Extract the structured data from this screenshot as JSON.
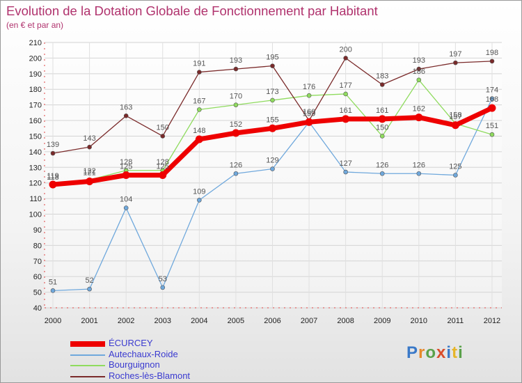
{
  "chart_data": {
    "type": "line",
    "title": "Evolution de la Dotation Globale de Fonctionnement par Habitant",
    "subtitle": "(en € et par an)",
    "x": [
      "2000",
      "2001",
      "2002",
      "2003",
      "2004",
      "2005",
      "2006",
      "2007",
      "2008",
      "2009",
      "2010",
      "2011",
      "2012"
    ],
    "ylim": [
      40,
      210
    ],
    "yticks": [
      40,
      50,
      60,
      70,
      80,
      90,
      100,
      110,
      120,
      130,
      140,
      150,
      160,
      170,
      180,
      190,
      200,
      210
    ],
    "series": [
      {
        "name": "ÉCURCEY",
        "color": "#ee0000",
        "values": [
          119,
          121,
          125,
          125,
          148,
          152,
          155,
          159,
          161,
          161,
          162,
          157,
          168
        ]
      },
      {
        "name": "Autechaux-Roide",
        "color": "#6fa8dc",
        "values": [
          51,
          52,
          104,
          53,
          109,
          126,
          129,
          159,
          127,
          126,
          126,
          125,
          174
        ]
      },
      {
        "name": "Bourguignon",
        "color": "#8fdb5e",
        "values": [
          118,
          122,
          128,
          128,
          167,
          170,
          173,
          176,
          177,
          150,
          186,
          158,
          151
        ]
      },
      {
        "name": "Roches-lès-Blamont",
        "color": "#7a2a2a",
        "values": [
          139,
          143,
          163,
          150,
          191,
          193,
          195,
          160,
          200,
          183,
          193,
          197,
          198
        ]
      }
    ]
  },
  "logo": {
    "letters": [
      "P",
      "r",
      "o",
      "x",
      "i",
      "t",
      "i"
    ]
  }
}
